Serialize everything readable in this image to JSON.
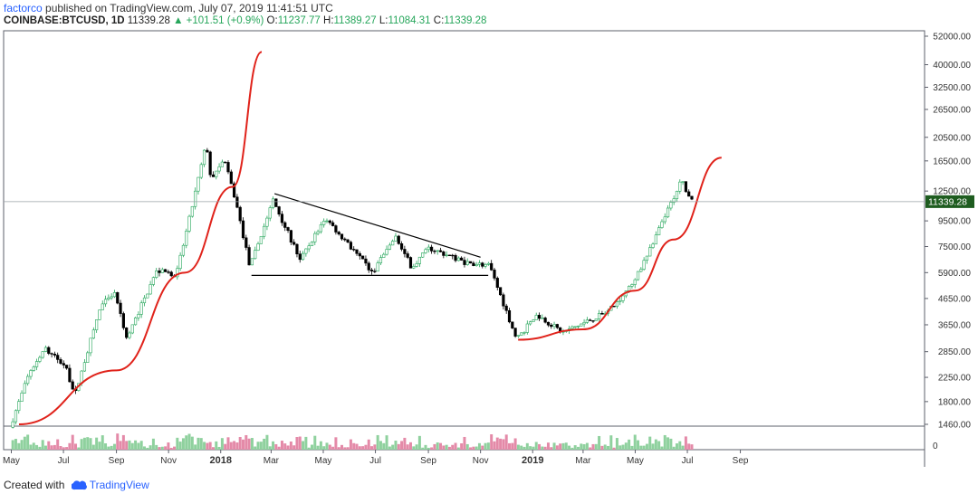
{
  "header": {
    "author": "factorco",
    "published_text": "published on TradingView.com, July 07, 2019 11:41:51 UTC"
  },
  "symbol_bar": {
    "symbol": "COINBASE:BTCUSD, 1D",
    "price": "11339.28",
    "change_arrow": "▲",
    "change": "+101.51 (+0.9%)",
    "open_label": "O:",
    "open": "11237.77",
    "high_label": "H:",
    "high": "11389.27",
    "low_label": "L:",
    "low": "11084.31",
    "close_label": "C:",
    "close": "11339.28"
  },
  "footer": {
    "created_with": "Created with",
    "brand": "TradingView"
  },
  "colors": {
    "up": "#26a65b",
    "down": "#000000",
    "curve": "#e0231b",
    "pattern_lines": "#000000",
    "price_tag": "#1e5c1f",
    "accent": "#2962ff"
  },
  "chart_data": {
    "type": "candlestick",
    "scale": "log",
    "price_axis_ticks": [
      "52000.00",
      "40000.00",
      "32500.00",
      "26500.00",
      "20500.00",
      "16500.00",
      "12500.00",
      "9500.00",
      "7500.00",
      "5900.00",
      "4650.00",
      "3650.00",
      "2850.00",
      "2250.00",
      "1800.00",
      "1460.00"
    ],
    "price_axis_values": [
      52000,
      40000,
      32500,
      26500,
      20500,
      16500,
      12500,
      9500,
      7500,
      5900,
      4650,
      3650,
      2850,
      2250,
      1800,
      1460
    ],
    "last_price_label": "11339.28",
    "last_price": 11339.28,
    "volume_axis_label": "0",
    "time_axis_labels": [
      "May",
      "Jul",
      "Sep",
      "Nov",
      "2018",
      "Mar",
      "May",
      "Jul",
      "Sep",
      "Nov",
      "2019",
      "Mar",
      "May",
      "Jul",
      "Sep"
    ],
    "time_axis_bold": [
      "2018",
      "2019"
    ],
    "price_path": [
      [
        "2017-05-01",
        1420
      ],
      [
        "2017-05-25",
        2400
      ],
      [
        "2017-06-12",
        2900
      ],
      [
        "2017-07-05",
        2500
      ],
      [
        "2017-07-16",
        1900
      ],
      [
        "2017-07-30",
        2800
      ],
      [
        "2017-08-15",
        4300
      ],
      [
        "2017-09-01",
        4900
      ],
      [
        "2017-09-15",
        3200
      ],
      [
        "2017-10-01",
        4300
      ],
      [
        "2017-10-20",
        6000
      ],
      [
        "2017-11-12",
        5800
      ],
      [
        "2017-11-28",
        10000
      ],
      [
        "2017-12-17",
        19500
      ],
      [
        "2017-12-22",
        13800
      ],
      [
        "2018-01-06",
        17000
      ],
      [
        "2018-01-20",
        11500
      ],
      [
        "2018-02-06",
        6200
      ],
      [
        "2018-03-05",
        11500
      ],
      [
        "2018-04-06",
        6600
      ],
      [
        "2018-05-05",
        9800
      ],
      [
        "2018-06-29",
        5900
      ],
      [
        "2018-07-26",
        8200
      ],
      [
        "2018-08-14",
        6200
      ],
      [
        "2018-09-04",
        7400
      ],
      [
        "2018-10-15",
        6500
      ],
      [
        "2018-11-13",
        6300
      ],
      [
        "2018-12-15",
        3200
      ],
      [
        "2019-01-08",
        4000
      ],
      [
        "2019-02-07",
        3400
      ],
      [
        "2019-03-31",
        4100
      ],
      [
        "2019-04-30",
        5300
      ],
      [
        "2019-05-30",
        8700
      ],
      [
        "2019-06-26",
        13800
      ],
      [
        "2019-07-07",
        11339.28
      ]
    ],
    "annotations": {
      "parabolic_curve_2017": [
        [
          "2017-05-10",
          1460
        ],
        [
          "2017-09-01",
          2400
        ],
        [
          "2017-11-20",
          5900
        ],
        [
          "2018-01-15",
          13000
        ],
        [
          "2018-02-18",
          45000
        ]
      ],
      "parabolic_curve_2019": [
        [
          "2018-12-15",
          3180
        ],
        [
          "2019-03-01",
          3500
        ],
        [
          "2019-05-01",
          5000
        ],
        [
          "2019-06-15",
          8000
        ],
        [
          "2019-08-10",
          17000
        ]
      ],
      "descending_triangle_top": [
        [
          "2018-03-05",
          12200
        ],
        [
          "2018-11-01",
          6800
        ]
      ],
      "descending_triangle_base": [
        [
          "2018-02-06",
          5750
        ],
        [
          "2018-11-10",
          5750
        ]
      ]
    }
  }
}
